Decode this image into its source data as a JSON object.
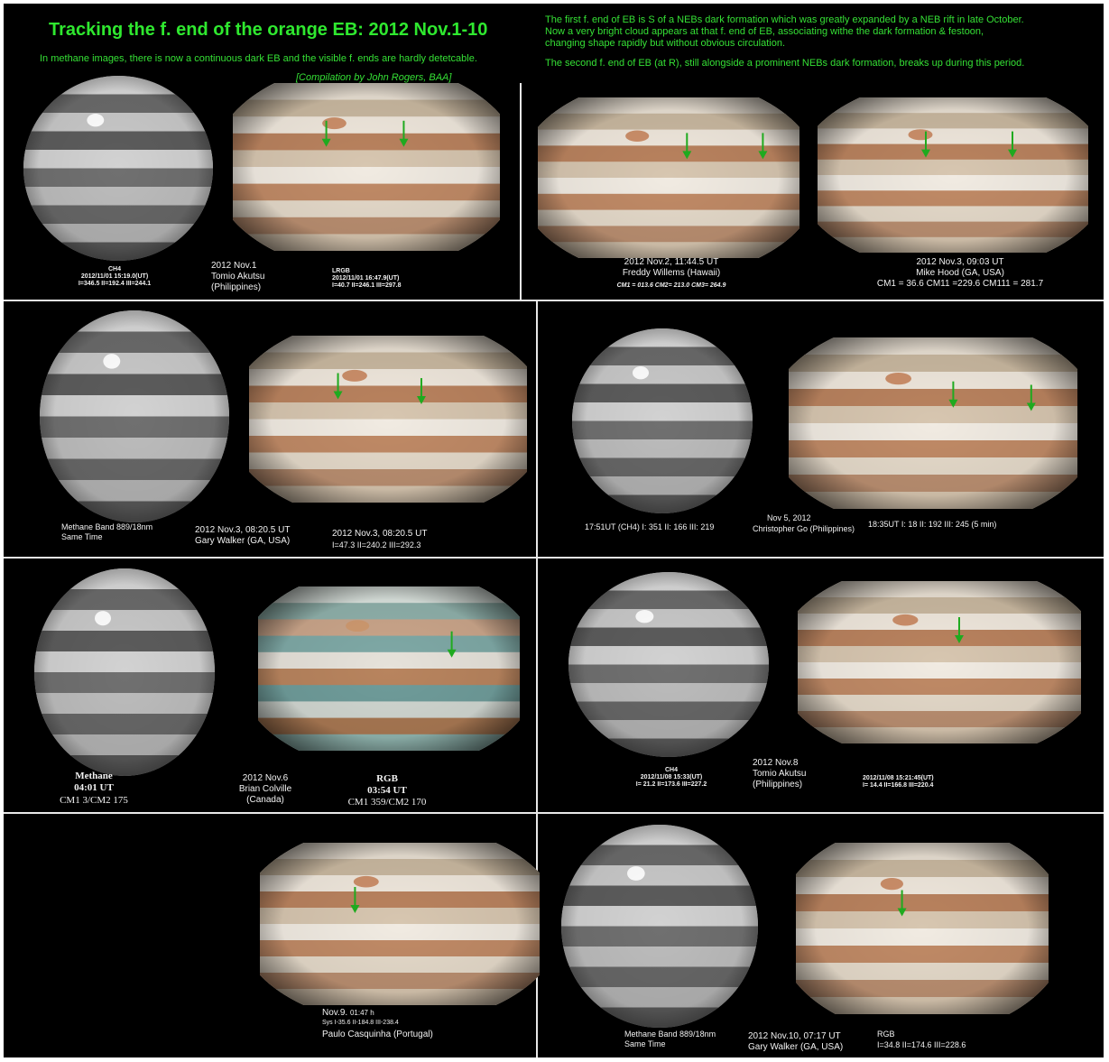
{
  "header": {
    "title": "Tracking the f. end of the orange EB: 2012 Nov.1-10",
    "subtitle": "In methane images, there is now a continuous dark EB and the visible f. ends are hardly detetcable.",
    "credit": "[Compilation by John Rogers, BAA]",
    "note_lines": [
      "The first f. end of EB is S of a NEBs dark formation which was greatly expanded by a NEB rift in late October.",
      "Now a very bright cloud appears at that f. end of EB, associating withe the dark formation & festoon,",
      "changing shape rapidly but without obvious circulation.",
      "The second f. end of EB (at R), still alongside a prominent NEBs dark formation, breaks up during this period."
    ]
  },
  "panels": {
    "p1": {
      "ch4_label": "CH4",
      "ch4_time": "2012/11/01 15:19.0(UT)",
      "ch4_cm": "I=346.5 II=192.4 III=244.1",
      "date": "2012 Nov.1",
      "observer": "Tomio Akutsu",
      "location": "(Philippines)",
      "lrgb_label": "LRGB",
      "lrgb_time": "2012/11/01 16:47.9(UT)",
      "lrgb_cm": "I=40.7 II=246.1 III=297.8"
    },
    "p2": {
      "date": "2012 Nov.2, 11:44.5 UT",
      "observer": "Freddy Willems (Hawaii)",
      "cm": "CM1 = 013.6  CM2= 213.0  CM3= 264.9"
    },
    "p3": {
      "date": "2012 Nov.3, 09:03 UT",
      "observer": "Mike Hood (GA, USA)",
      "cm": "CM1 = 36.6   CM11 =229.6   CM111 = 281.7"
    },
    "p4": {
      "methane_label": "Methane Band  889/18nm",
      "same_time": "Same Time",
      "date": "2012 Nov.3, 08:20.5 UT",
      "observer": "Gary Walker (GA, USA)",
      "date2": "2012 Nov.3, 08:20.5 UT",
      "cm": "I=47.3  II=240.2  III=292.3"
    },
    "p5": {
      "ch4": "17:51UT (CH4)  I: 351  II: 166  III: 219",
      "date": "Nov 5, 2012",
      "observer": "Christopher Go  (Philippines)",
      "rgb": "18:35UT  I: 18  II: 192  III: 245  (5 min)"
    },
    "p6": {
      "methane": "Methane",
      "methane_time": "04:01 UT",
      "methane_cm": "CM1 3/CM2 175",
      "date": "2012 Nov.6",
      "observer": "Brian Colville",
      "location": "(Canada)",
      "rgb": "RGB",
      "rgb_time": "03:54 UT",
      "rgb_cm": "CM1 359/CM2 170"
    },
    "p7": {
      "ch4_label": "CH4",
      "ch4_time": "2012/11/08 15:33(UT)",
      "ch4_cm": "I= 21.2 II=173.6 III=227.2",
      "date": "2012 Nov.8",
      "observer": "Tomio Akutsu",
      "location": "(Philippines)",
      "rgb_time": "2012/11/08 15:21:45(UT)",
      "rgb_cm": "I= 14.4 II=166.8 III=220.4"
    },
    "p8": {
      "date": "Nov.9.",
      "time": "01:47 h",
      "sys": "Sys I-35.6 II-184.8 III-238.4",
      "observer": "Paulo Casquinha (Portugal)"
    },
    "p9": {
      "methane_label": "Methane Band  889/18nm",
      "same_time": "Same Time",
      "date": "2012 Nov.10, 07:17 UT",
      "observer": "Gary Walker (GA, USA)",
      "rgb": "RGB",
      "cm": "I=34.8  II=174.6  III=228.6"
    }
  },
  "colors": {
    "accent_green": "#2fe82f",
    "arrow_green": "#1faa1f",
    "divider": "#e8e8e8",
    "background": "#000000"
  }
}
